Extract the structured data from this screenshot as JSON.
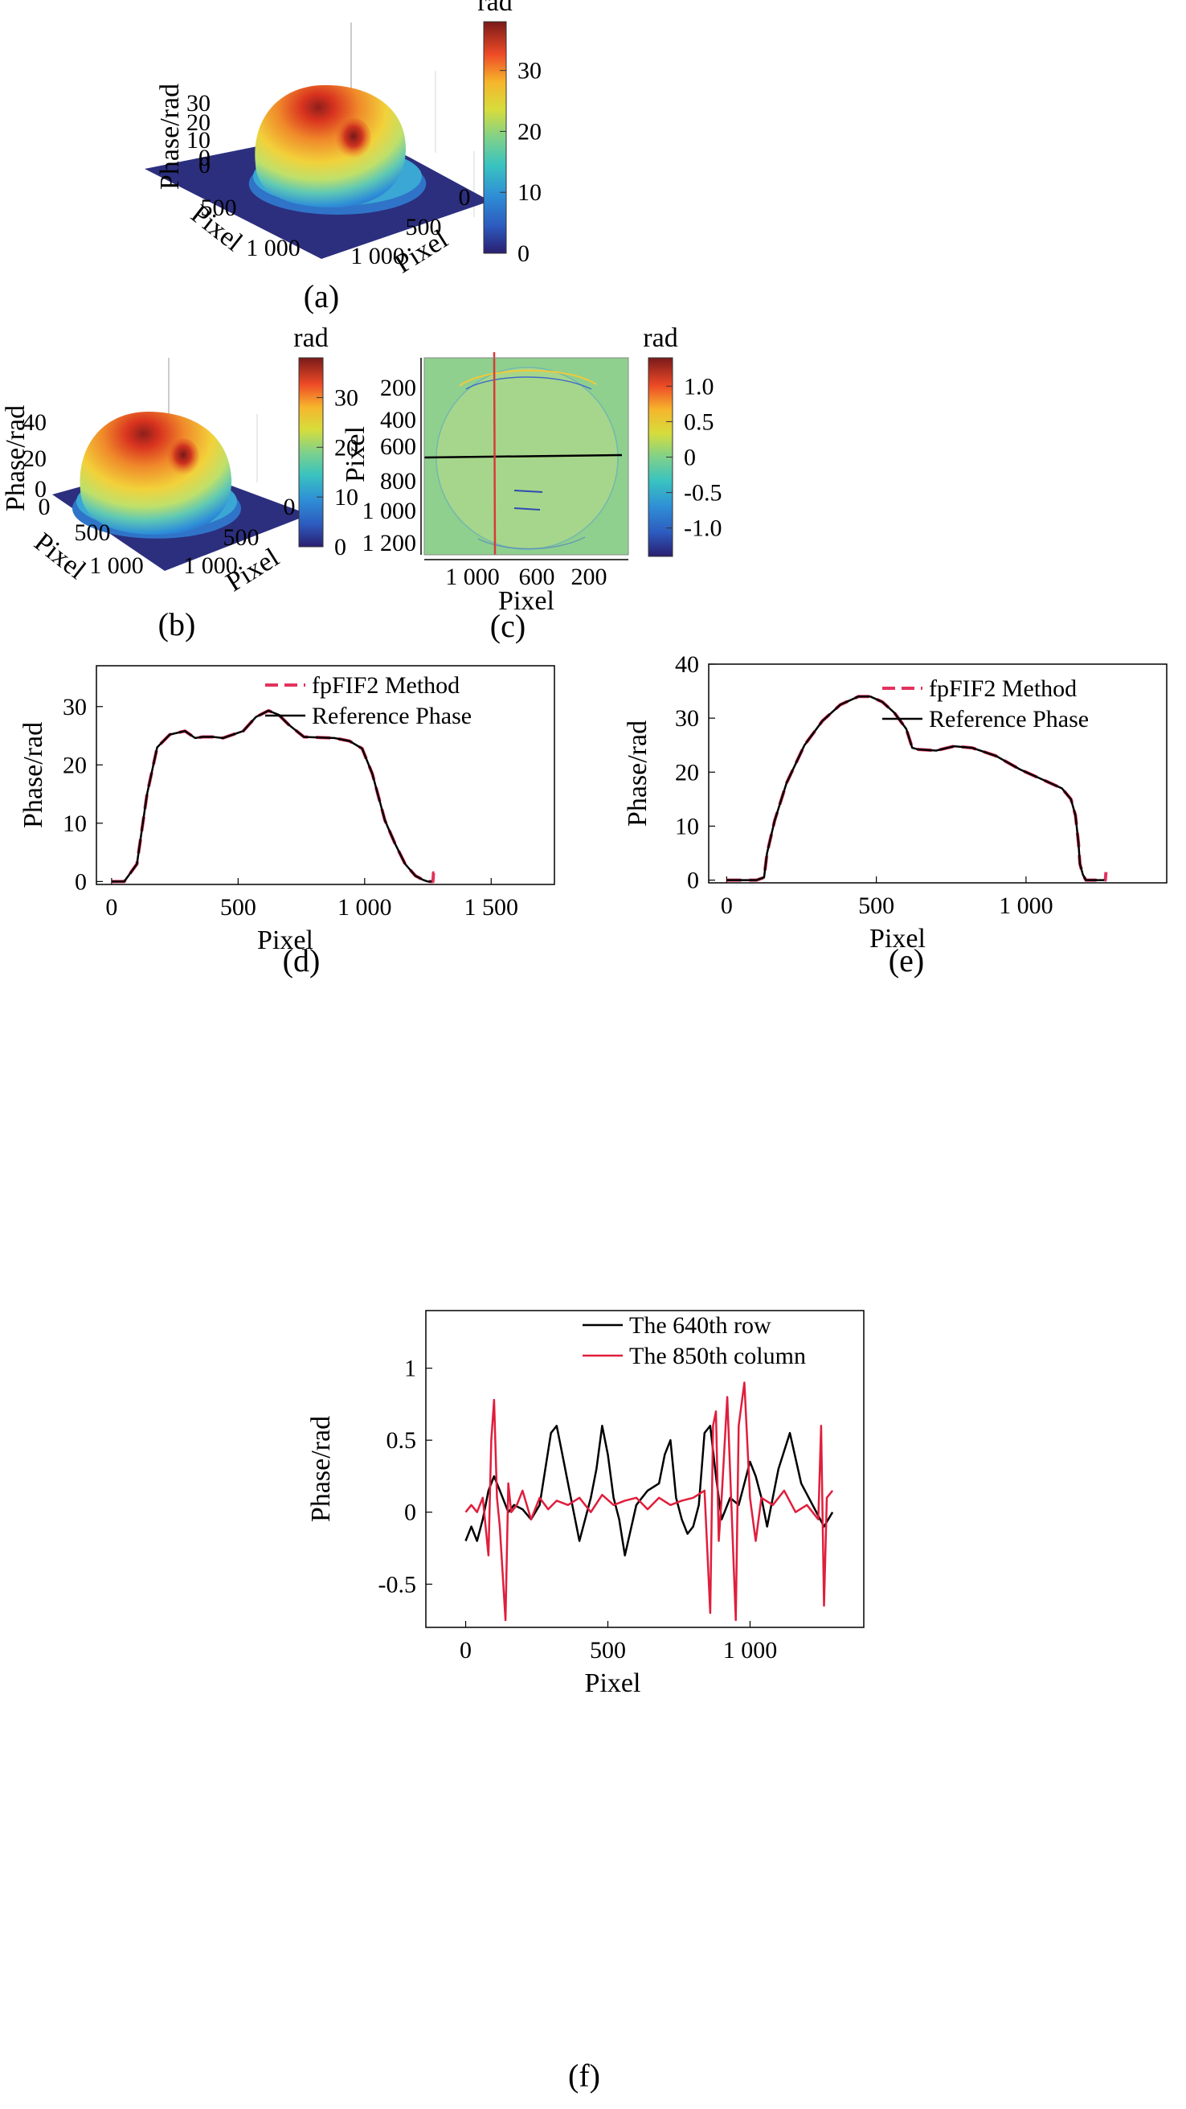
{
  "figure": {
    "panels": [
      {
        "id": "a",
        "caption": "(a)",
        "type": "surface3d",
        "zlabel": "Phase/rad",
        "zticks": [
          "30",
          "20",
          "10",
          "0",
          "0"
        ],
        "xlabel": "Pixel",
        "xticks": [
          "500",
          "1 000"
        ],
        "ylabel": "Pixel",
        "yticks": [
          "0",
          "500",
          "1 000"
        ],
        "colorbar": {
          "label": "rad",
          "ticks": [
            "30",
            "20",
            "10",
            "0"
          ],
          "range": [
            0,
            38
          ]
        }
      },
      {
        "id": "b",
        "caption": "(b)",
        "type": "surface3d",
        "zlabel": "Phase/rad",
        "zticks": [
          "40",
          "20",
          "0"
        ],
        "xlabel": "Pixel",
        "xticks": [
          "0",
          "500",
          "1 000"
        ],
        "ylabel": "Pixel",
        "yticks": [
          "0",
          "500",
          "1 000"
        ],
        "colorbar": {
          "label": "rad",
          "ticks": [
            "30",
            "20",
            "10",
            "0"
          ],
          "range": [
            0,
            38
          ]
        }
      },
      {
        "id": "c",
        "caption": "(c)",
        "type": "heatmap",
        "xlabel": "Pixel",
        "ylabel": "Pixel",
        "xticks": [
          "1 000",
          "600",
          "200"
        ],
        "yticks": [
          "200",
          "400",
          "600",
          "800",
          "1 000",
          "1 200"
        ],
        "colorbar": {
          "label": "rad",
          "ticks": [
            "1.0",
            "0.5",
            "0",
            "-0.5",
            "-1.0"
          ],
          "range": [
            -1.4,
            1.4
          ]
        }
      }
    ]
  },
  "colors": {
    "fpfif2": "#e2335d",
    "reference": "#000000",
    "row": "#000000",
    "column": "#e01e3c",
    "hline": "#000000",
    "vline": "#d83a3a"
  },
  "chart_data": [
    {
      "id": "d",
      "caption": "(d)",
      "type": "line",
      "xlabel": "Pixel",
      "ylabel": "Phase/rad",
      "xlim": [
        -60,
        1750
      ],
      "ylim": [
        -0.5,
        37
      ],
      "xticks": [
        0,
        500,
        1000,
        1500
      ],
      "xtick_labels": [
        "0",
        "500",
        "1 000",
        "1 500"
      ],
      "yticks": [
        0,
        10,
        20,
        30
      ],
      "ytick_labels": [
        "0",
        "10",
        "20",
        "30"
      ],
      "legend": "top-right",
      "series": [
        {
          "name": "fpFIF2 Method",
          "style": "dashed",
          "x": [
            0,
            50,
            100,
            140,
            180,
            230,
            290,
            330,
            360,
            400,
            440,
            520,
            570,
            620,
            660,
            700,
            760,
            820,
            880,
            940,
            990,
            1030,
            1080,
            1120,
            1160,
            1200,
            1230,
            1250,
            1270,
            1272,
            1275
          ],
          "y": [
            0,
            0,
            3,
            15,
            23,
            25.2,
            25.8,
            24.6,
            24.8,
            24.8,
            24.6,
            25.8,
            28.2,
            29.3,
            28.6,
            26.9,
            24.8,
            24.7,
            24.6,
            24.1,
            22.8,
            18.5,
            10.5,
            6.5,
            3,
            1,
            0.3,
            0,
            0,
            1.5,
            1.5
          ]
        },
        {
          "name": "Reference Phase",
          "style": "solid",
          "x": [
            0,
            50,
            100,
            140,
            180,
            230,
            290,
            330,
            360,
            400,
            440,
            520,
            570,
            620,
            660,
            700,
            760,
            820,
            880,
            940,
            990,
            1030,
            1080,
            1120,
            1160,
            1200,
            1230,
            1250,
            1265
          ],
          "y": [
            0,
            0,
            3,
            15,
            23,
            25.2,
            25.8,
            24.6,
            24.8,
            24.8,
            24.6,
            25.8,
            28.2,
            29.3,
            28.6,
            26.9,
            24.8,
            24.7,
            24.6,
            24.1,
            22.8,
            18.5,
            10.5,
            6.5,
            3,
            1,
            0.3,
            0,
            0
          ]
        }
      ]
    },
    {
      "id": "e",
      "caption": "(e)",
      "type": "line",
      "xlabel": "Pixel",
      "ylabel": "Phase/rad",
      "xlim": [
        -60,
        1470
      ],
      "ylim": [
        -0.5,
        40
      ],
      "xticks": [
        0,
        500,
        1000
      ],
      "xtick_labels": [
        "0",
        "500",
        "1 000"
      ],
      "yticks": [
        0,
        10,
        20,
        30,
        40
      ],
      "ytick_labels": [
        "0",
        "10",
        "20",
        "30",
        "40"
      ],
      "legend": "top-right",
      "series": [
        {
          "name": "fpFIF2 Method",
          "style": "dashed",
          "x": [
            0,
            100,
            125,
            135,
            160,
            200,
            260,
            320,
            380,
            440,
            480,
            520,
            560,
            600,
            620,
            640,
            700,
            760,
            820,
            900,
            980,
            1060,
            1120,
            1150,
            1165,
            1175,
            1180,
            1190,
            1200,
            1240,
            1265,
            1267
          ],
          "y": [
            0,
            0,
            0.5,
            5,
            11,
            18,
            25,
            29.5,
            32.5,
            34,
            34,
            33,
            31,
            28,
            24.5,
            24.2,
            24,
            24.8,
            24.5,
            23,
            20.5,
            18.5,
            17,
            15,
            12,
            7,
            3,
            1,
            0,
            0,
            0,
            1.5
          ]
        },
        {
          "name": "Reference Phase",
          "style": "solid",
          "x": [
            0,
            100,
            125,
            135,
            160,
            200,
            260,
            320,
            380,
            440,
            480,
            520,
            560,
            600,
            620,
            640,
            700,
            760,
            820,
            900,
            980,
            1060,
            1120,
            1150,
            1165,
            1175,
            1180,
            1190,
            1200,
            1240,
            1262
          ],
          "y": [
            0,
            0,
            0.5,
            5,
            11,
            18,
            25,
            29.5,
            32.5,
            34,
            34,
            33,
            31,
            28,
            24.5,
            24.2,
            24,
            24.8,
            24.5,
            23,
            20.5,
            18.5,
            17,
            15,
            12,
            7,
            3,
            1,
            0,
            0,
            0
          ]
        }
      ]
    },
    {
      "id": "f",
      "caption": "(f)",
      "type": "line",
      "xlabel": "Pixel",
      "ylabel": "Phase/rad",
      "xlim": [
        -140,
        1400
      ],
      "ylim": [
        -0.8,
        1.4
      ],
      "xticks": [
        0,
        500,
        1000
      ],
      "xtick_labels": [
        "0",
        "500",
        "1 000"
      ],
      "yticks": [
        -0.5,
        0,
        0.5,
        1
      ],
      "ytick_labels": [
        "-0.5",
        "0",
        "0.5",
        "1"
      ],
      "legend": "top-right",
      "series": [
        {
          "name": "The 640th row",
          "style": "solid",
          "x": [
            0,
            20,
            40,
            60,
            80,
            100,
            130,
            150,
            170,
            200,
            230,
            260,
            300,
            320,
            340,
            360,
            380,
            400,
            420,
            440,
            460,
            480,
            500,
            520,
            540,
            560,
            600,
            640,
            680,
            700,
            720,
            740,
            760,
            780,
            800,
            820,
            840,
            860,
            880,
            900,
            930,
            960,
            980,
            1000,
            1020,
            1040,
            1060,
            1100,
            1140,
            1180,
            1220,
            1260,
            1290
          ],
          "y": [
            -0.2,
            -0.1,
            -0.2,
            -0.05,
            0.15,
            0.25,
            0.1,
            0,
            0.05,
            0.02,
            -0.05,
            0.05,
            0.55,
            0.6,
            0.4,
            0.2,
            0,
            -0.2,
            -0.05,
            0.1,
            0.3,
            0.6,
            0.4,
            0.1,
            -0.05,
            -0.3,
            0.05,
            0.15,
            0.2,
            0.4,
            0.5,
            0.1,
            -0.05,
            -0.15,
            -0.1,
            0.05,
            0.55,
            0.6,
            0.25,
            -0.05,
            0.1,
            0.05,
            0.2,
            0.35,
            0.25,
            0.1,
            -0.1,
            0.3,
            0.55,
            0.2,
            0.05,
            -0.1,
            0.0
          ]
        },
        {
          "name": "The 850th column",
          "style": "solid",
          "x": [
            0,
            20,
            40,
            60,
            80,
            90,
            100,
            110,
            120,
            140,
            150,
            160,
            180,
            200,
            230,
            260,
            290,
            320,
            360,
            400,
            440,
            480,
            520,
            560,
            600,
            640,
            680,
            720,
            760,
            800,
            840,
            860,
            870,
            880,
            890,
            900,
            920,
            950,
            960,
            980,
            1000,
            1020,
            1040,
            1080,
            1120,
            1160,
            1200,
            1240,
            1250,
            1260,
            1270,
            1290
          ],
          "y": [
            0,
            0.05,
            0,
            0.1,
            -0.3,
            0.5,
            0.78,
            0.1,
            -0.1,
            -0.75,
            0.2,
            0,
            0.05,
            0.15,
            -0.05,
            0.1,
            0.02,
            0.08,
            0.05,
            0.1,
            0.0,
            0.12,
            0.05,
            0.08,
            0.1,
            0.02,
            0.1,
            0.05,
            0.08,
            0.1,
            0.15,
            -0.7,
            0.6,
            0.7,
            -0.2,
            0.1,
            0.8,
            -0.75,
            0.6,
            0.9,
            0.1,
            -0.2,
            0.1,
            0.05,
            0.15,
            0.0,
            0.05,
            -0.05,
            0.6,
            -0.65,
            0.1,
            0.15
          ]
        }
      ]
    }
  ]
}
